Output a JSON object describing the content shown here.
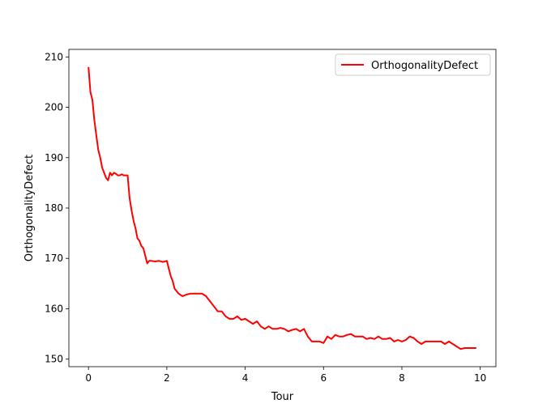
{
  "chart_data": {
    "type": "line",
    "title": "",
    "xlabel": "Tour",
    "ylabel": "OrthogonalityDefect",
    "xlim": [
      -0.5,
      10.4
    ],
    "ylim": [
      148.5,
      211.5
    ],
    "xticks": [
      0,
      2,
      4,
      6,
      8,
      10
    ],
    "yticks": [
      150,
      160,
      170,
      180,
      190,
      200,
      210
    ],
    "grid": false,
    "legend_position": "top-right",
    "series": [
      {
        "name": "OrthogonalityDefect",
        "color": "#ff0000",
        "x": [
          0.0,
          0.05,
          0.1,
          0.15,
          0.2,
          0.25,
          0.3,
          0.35,
          0.4,
          0.45,
          0.5,
          0.55,
          0.6,
          0.65,
          0.7,
          0.75,
          0.8,
          0.85,
          0.9,
          0.95,
          1.0,
          1.05,
          1.1,
          1.15,
          1.2,
          1.25,
          1.3,
          1.35,
          1.4,
          1.45,
          1.5,
          1.55,
          1.6,
          1.7,
          1.8,
          1.9,
          2.0,
          2.05,
          2.1,
          2.15,
          2.2,
          2.3,
          2.4,
          2.5,
          2.6,
          2.7,
          2.8,
          2.9,
          3.0,
          3.1,
          3.2,
          3.3,
          3.4,
          3.5,
          3.6,
          3.7,
          3.8,
          3.9,
          4.0,
          4.1,
          4.2,
          4.3,
          4.4,
          4.5,
          4.6,
          4.7,
          4.8,
          4.9,
          5.0,
          5.1,
          5.2,
          5.3,
          5.4,
          5.5,
          5.6,
          5.7,
          5.8,
          5.9,
          6.0,
          6.1,
          6.2,
          6.3,
          6.4,
          6.5,
          6.6,
          6.7,
          6.8,
          6.9,
          7.0,
          7.1,
          7.2,
          7.3,
          7.4,
          7.5,
          7.6,
          7.7,
          7.8,
          7.9,
          8.0,
          8.1,
          8.2,
          8.3,
          8.4,
          8.5,
          8.6,
          8.7,
          8.8,
          8.9,
          9.0,
          9.1,
          9.2,
          9.3,
          9.4,
          9.5,
          9.6,
          9.7,
          9.8,
          9.9
        ],
        "y": [
          208.0,
          203.0,
          201.5,
          197.5,
          194.5,
          191.5,
          190.0,
          188.0,
          187.0,
          186.0,
          185.5,
          187.0,
          186.5,
          187.0,
          186.8,
          186.5,
          186.5,
          186.7,
          186.5,
          186.5,
          186.5,
          182.0,
          179.5,
          177.5,
          176.0,
          174.0,
          173.5,
          172.5,
          172.0,
          170.5,
          169.0,
          169.5,
          169.5,
          169.4,
          169.5,
          169.3,
          169.5,
          168.0,
          166.5,
          165.5,
          164.0,
          163.0,
          162.5,
          162.8,
          163.0,
          163.0,
          163.0,
          163.0,
          162.5,
          161.5,
          160.5,
          159.5,
          159.5,
          158.5,
          158.0,
          158.0,
          158.5,
          157.8,
          158.0,
          157.5,
          157.0,
          157.5,
          156.5,
          156.0,
          156.5,
          156.0,
          156.0,
          156.2,
          156.0,
          155.5,
          155.8,
          156.0,
          155.5,
          156.0,
          154.5,
          153.5,
          153.5,
          153.5,
          153.2,
          154.5,
          154.0,
          154.8,
          154.5,
          154.5,
          154.8,
          155.0,
          154.5,
          154.5,
          154.5,
          154.0,
          154.2,
          154.0,
          154.5,
          154.0,
          154.0,
          154.2,
          153.5,
          153.8,
          153.5,
          153.8,
          154.5,
          154.2,
          153.5,
          153.0,
          153.5,
          153.5,
          153.5,
          153.5,
          153.5,
          153.0,
          153.5,
          153.0,
          152.5,
          152.0,
          152.2,
          152.2,
          152.2,
          152.2
        ]
      }
    ]
  }
}
